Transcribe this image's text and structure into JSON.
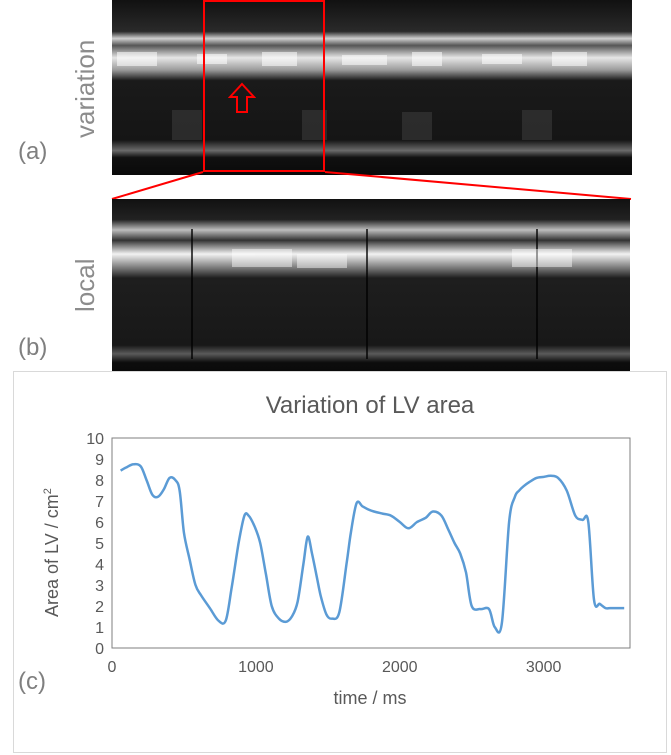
{
  "panels": {
    "a": {
      "letter": "(a)",
      "side_label": "variation"
    },
    "b": {
      "letter": "(b)",
      "side_label": "local"
    },
    "c": {
      "letter": "(c)"
    }
  },
  "colors": {
    "highlight": "#ff0000",
    "series": "#5b9bd5",
    "axis": "#7f7f7f",
    "frame": "#d9d9d9"
  },
  "chart_data": {
    "type": "line",
    "title": "Variation of LV area",
    "xlabel": "time / ms",
    "ylabel_text": "Area of LV / cm",
    "ylabel_superscript": "2",
    "xlim": [
      0,
      3600
    ],
    "ylim": [
      0,
      10
    ],
    "xticks": [
      0,
      1000,
      2000,
      3000
    ],
    "yticks": [
      0,
      1,
      2,
      3,
      4,
      5,
      6,
      7,
      8,
      9,
      10
    ],
    "grid": false,
    "series": [
      {
        "name": "LV area",
        "x": [
          60,
          100,
          150,
          200,
          240,
          280,
          320,
          360,
          400,
          440,
          470,
          500,
          540,
          580,
          620,
          680,
          740,
          790,
          830,
          880,
          920,
          950,
          990,
          1030,
          1070,
          1110,
          1160,
          1210,
          1250,
          1290,
          1330,
          1360,
          1390,
          1420,
          1450,
          1490,
          1530,
          1580,
          1630,
          1660,
          1700,
          1740,
          1780,
          1820,
          1880,
          1940,
          2000,
          2060,
          2120,
          2180,
          2230,
          2290,
          2340,
          2380,
          2420,
          2460,
          2500,
          2560,
          2620,
          2660,
          2710,
          2760,
          2800,
          2830,
          2860,
          2900,
          2950,
          3000,
          3050,
          3100,
          3160,
          3220,
          3270,
          3310,
          3350,
          3390,
          3430,
          3460,
          3490,
          3520,
          3560
        ],
        "y": [
          8.45,
          8.6,
          8.75,
          8.65,
          8.0,
          7.3,
          7.2,
          7.55,
          8.1,
          8.0,
          7.5,
          5.5,
          4.2,
          3.0,
          2.5,
          1.9,
          1.3,
          1.3,
          2.8,
          5.0,
          6.3,
          6.3,
          5.8,
          5.0,
          3.5,
          2.0,
          1.4,
          1.25,
          1.5,
          2.2,
          4.0,
          5.3,
          4.5,
          3.5,
          2.5,
          1.6,
          1.4,
          1.7,
          4.0,
          5.5,
          6.9,
          6.75,
          6.6,
          6.5,
          6.4,
          6.3,
          6.0,
          5.7,
          6.0,
          6.2,
          6.5,
          6.3,
          5.6,
          5.0,
          4.5,
          3.6,
          2.0,
          1.85,
          1.85,
          1.0,
          1.2,
          6.0,
          7.2,
          7.5,
          7.7,
          7.9,
          8.1,
          8.15,
          8.2,
          8.1,
          7.5,
          6.3,
          6.1,
          6.0,
          2.3,
          2.1,
          1.9,
          1.9,
          1.9,
          1.9,
          1.9
        ]
      }
    ]
  }
}
